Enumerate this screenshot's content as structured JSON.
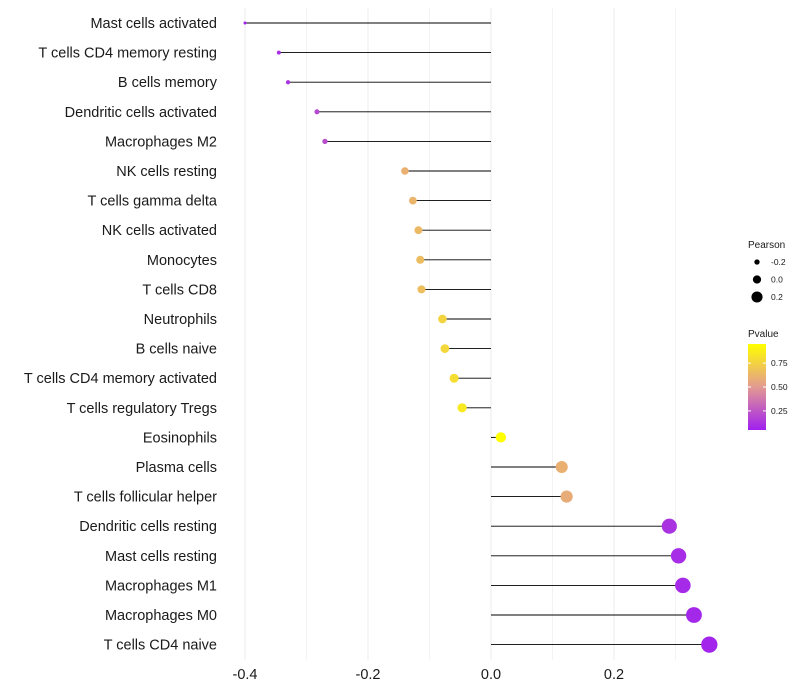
{
  "chart_data": {
    "type": "lollipop",
    "title": "",
    "xlabel": "",
    "ylabel": "",
    "xlim": [
      -0.4,
      0.35
    ],
    "xticks": [
      -0.4,
      -0.2,
      0.0,
      0.2
    ],
    "xtick_labels": [
      "-0.4",
      "-0.2",
      "0.0",
      "0.2"
    ],
    "grid": true,
    "baseline": 0.0,
    "categories": [
      "Mast cells activated",
      "T cells CD4 memory resting",
      "B cells memory",
      "Dendritic cells activated",
      "Macrophages M2",
      "NK cells resting",
      "T cells gamma delta",
      "NK cells activated",
      "Monocytes",
      "T cells CD8",
      "Neutrophils",
      "B cells naive",
      "T cells CD4 memory activated",
      "T cells regulatory  Tregs ",
      "Eosinophils",
      "Plasma cells",
      "T cells follicular helper",
      "Dendritic cells resting",
      "Mast cells resting",
      "Macrophages M1",
      "Macrophages M0",
      "T cells CD4 naive"
    ],
    "values": [
      -0.4,
      -0.345,
      -0.33,
      -0.283,
      -0.27,
      -0.14,
      -0.127,
      -0.118,
      -0.115,
      -0.113,
      -0.079,
      -0.075,
      -0.06,
      -0.047,
      0.016,
      0.115,
      0.123,
      0.29,
      0.305,
      0.312,
      0.33,
      0.355
    ],
    "pvalues": [
      0.05,
      0.1,
      0.12,
      0.2,
      0.22,
      0.6,
      0.62,
      0.64,
      0.65,
      0.66,
      0.76,
      0.77,
      0.8,
      0.85,
      0.95,
      0.6,
      0.58,
      0.12,
      0.1,
      0.09,
      0.08,
      0.07
    ],
    "size_legend": {
      "title": "Pearson",
      "entries": [
        {
          "label": "-0.2",
          "value": -0.2
        },
        {
          "label": "0.0",
          "value": 0.0
        },
        {
          "label": "0.2",
          "value": 0.2
        }
      ]
    },
    "color_legend": {
      "title": "Pvalue",
      "range": [
        0.05,
        0.95
      ],
      "ticks": [
        {
          "label": "0.75",
          "value": 0.75
        },
        {
          "label": "0.50",
          "value": 0.5
        },
        {
          "label": "0.25",
          "value": 0.25
        }
      ],
      "low_color": "#a020f0",
      "mid_color": "#e39a92",
      "high_color": "#ffff00"
    },
    "stem_color": "#000000",
    "grid_color": "#ebebeb"
  }
}
